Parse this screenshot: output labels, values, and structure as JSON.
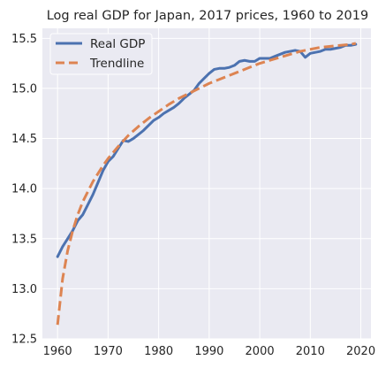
{
  "chart_data": {
    "type": "line",
    "title": "Log real GDP for Japan, 2017 prices, 1960 to 2019",
    "xlabel": "",
    "ylabel": "",
    "xlim": [
      1957,
      2022
    ],
    "ylim": [
      12.5,
      15.6
    ],
    "x_ticks": [
      1960,
      1970,
      1980,
      1990,
      2000,
      2010,
      2020
    ],
    "y_ticks": [
      12.5,
      13.0,
      13.5,
      14.0,
      14.5,
      15.0,
      15.5
    ],
    "y_tick_labels": [
      "12.5",
      "13.0",
      "13.5",
      "14.0",
      "14.5",
      "15.0",
      "15.5"
    ],
    "grid": true,
    "legend_position": "top-left",
    "background_color": "#eaeaf2",
    "grid_color": "#ffffff",
    "series": [
      {
        "name": "Real GDP",
        "style": "solid",
        "color": "#4c72b0",
        "x": [
          1960,
          1961,
          1962,
          1963,
          1964,
          1965,
          1966,
          1967,
          1968,
          1969,
          1970,
          1971,
          1972,
          1973,
          1974,
          1975,
          1976,
          1977,
          1978,
          1979,
          1980,
          1981,
          1982,
          1983,
          1984,
          1985,
          1986,
          1987,
          1988,
          1989,
          1990,
          1991,
          1992,
          1993,
          1994,
          1995,
          1996,
          1997,
          1998,
          1999,
          2000,
          2001,
          2002,
          2003,
          2004,
          2005,
          2006,
          2007,
          2008,
          2009,
          2010,
          2011,
          2012,
          2013,
          2014,
          2015,
          2016,
          2017,
          2018,
          2019
        ],
        "y": [
          13.32,
          13.42,
          13.5,
          13.58,
          13.68,
          13.74,
          13.84,
          13.94,
          14.06,
          14.18,
          14.27,
          14.32,
          14.4,
          14.48,
          14.47,
          14.5,
          14.54,
          14.58,
          14.63,
          14.68,
          14.71,
          14.75,
          14.78,
          14.81,
          14.85,
          14.9,
          14.94,
          14.98,
          15.05,
          15.1,
          15.15,
          15.19,
          15.2,
          15.2,
          15.21,
          15.23,
          15.27,
          15.28,
          15.27,
          15.27,
          15.3,
          15.3,
          15.3,
          15.32,
          15.34,
          15.36,
          15.37,
          15.38,
          15.37,
          15.31,
          15.35,
          15.36,
          15.37,
          15.39,
          15.39,
          15.4,
          15.41,
          15.43,
          15.43,
          15.44
        ]
      },
      {
        "name": "Trendline",
        "style": "dashed",
        "color": "#dd8452",
        "x": [
          1960,
          1961,
          1962,
          1963,
          1964,
          1965,
          1966,
          1967,
          1968,
          1969,
          1970,
          1972,
          1974,
          1976,
          1978,
          1980,
          1982,
          1984,
          1986,
          1988,
          1990,
          1992,
          1994,
          1996,
          1998,
          2000,
          2002,
          2004,
          2006,
          2008,
          2010,
          2012,
          2014,
          2016,
          2018,
          2019
        ],
        "y": [
          12.64,
          13.1,
          13.38,
          13.58,
          13.74,
          13.87,
          13.97,
          14.07,
          14.15,
          14.23,
          14.3,
          14.42,
          14.53,
          14.62,
          14.7,
          14.77,
          14.84,
          14.9,
          14.95,
          15.0,
          15.05,
          15.09,
          15.13,
          15.17,
          15.21,
          15.25,
          15.28,
          15.31,
          15.34,
          15.37,
          15.39,
          15.41,
          15.42,
          15.43,
          15.44,
          15.45
        ]
      }
    ]
  }
}
